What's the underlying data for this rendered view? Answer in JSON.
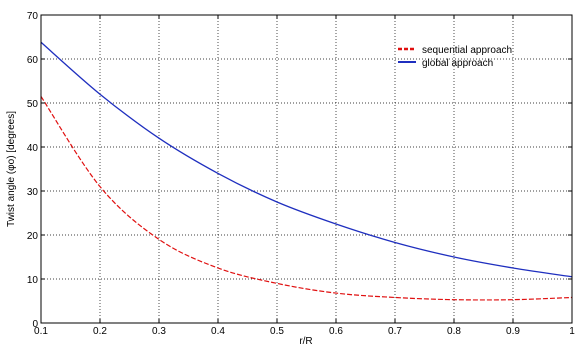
{
  "chart_data": {
    "type": "line",
    "xlabel": "r/R",
    "ylabel": "Twist angle (φo) [degrees]",
    "xlim": [
      0.1,
      1.0
    ],
    "ylim": [
      0,
      70
    ],
    "xticks": [
      "0.1",
      "0.2",
      "0.3",
      "0.4",
      "0.5",
      "0.6",
      "0.7",
      "0.8",
      "0.9",
      "1"
    ],
    "yticks": [
      "0",
      "10",
      "20",
      "30",
      "40",
      "50",
      "60",
      "70"
    ],
    "grid": true,
    "legend_position": "top-right",
    "x": [
      0.1,
      0.2,
      0.3,
      0.4,
      0.5,
      0.6,
      0.7,
      0.8,
      0.9,
      1.0
    ],
    "series": [
      {
        "name": "sequential approach",
        "color": "#e01010",
        "style": "dashed",
        "values": [
          51.5,
          31,
          19,
          12.5,
          9,
          6.8,
          5.8,
          5.3,
          5.3,
          5.8
        ]
      },
      {
        "name": "global approach",
        "color": "#1f2fbf",
        "style": "solid",
        "values": [
          63.8,
          52,
          42,
          34,
          27.5,
          22.5,
          18.3,
          15,
          12.5,
          10.5
        ]
      }
    ]
  }
}
